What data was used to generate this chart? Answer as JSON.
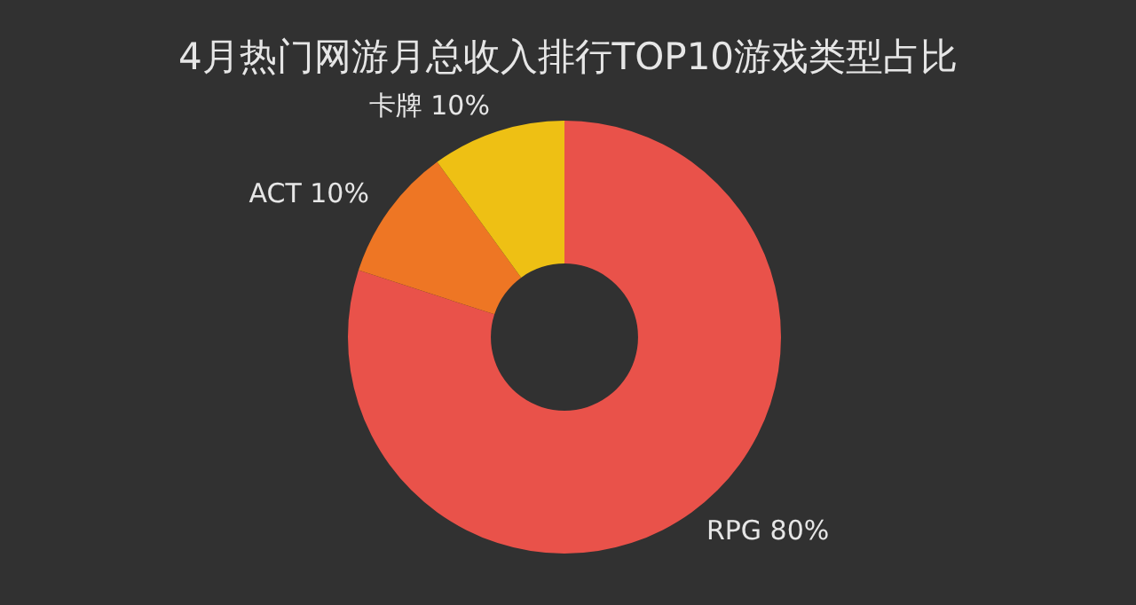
{
  "chart_data": {
    "type": "donut",
    "title": "4月热门网游月总收入排行TOP10游戏类型占比",
    "categories": [
      "RPG",
      "ACT",
      "卡牌"
    ],
    "values": [
      80,
      10,
      10
    ],
    "value_labels": [
      "80%",
      "10%",
      "10%"
    ],
    "colors": [
      "#e9524a",
      "#ee7624",
      "#eec014"
    ],
    "legend": false
  }
}
